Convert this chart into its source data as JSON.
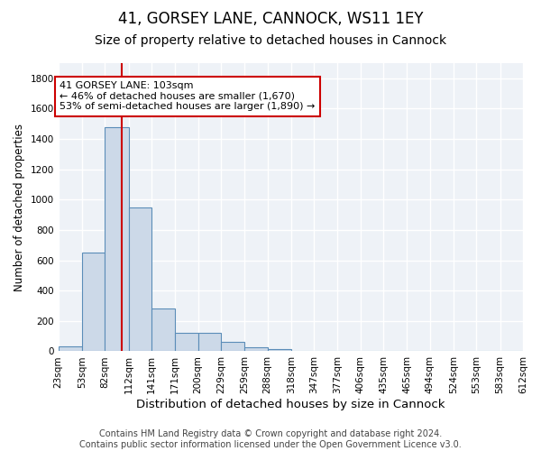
{
  "title1": "41, GORSEY LANE, CANNOCK, WS11 1EY",
  "title2": "Size of property relative to detached houses in Cannock",
  "xlabel": "Distribution of detached houses by size in Cannock",
  "ylabel": "Number of detached properties",
  "bin_edges": [
    23,
    53,
    82,
    112,
    141,
    171,
    200,
    229,
    259,
    288,
    318,
    347,
    377,
    406,
    435,
    465,
    494,
    524,
    553,
    583,
    612
  ],
  "bar_heights": [
    35,
    650,
    1480,
    950,
    280,
    120,
    120,
    60,
    25,
    15,
    5,
    5,
    2,
    0,
    0,
    0,
    0,
    0,
    0,
    0
  ],
  "bar_color": "#ccd9e8",
  "bar_edge_color": "#5b8db8",
  "vline_x": 103,
  "vline_color": "#cc0000",
  "annotation_text_line1": "41 GORSEY LANE: 103sqm",
  "annotation_text_line2": "← 46% of detached houses are smaller (1,670)",
  "annotation_text_line3": "53% of semi-detached houses are larger (1,890) →",
  "annotation_box_color": "#cc0000",
  "ylim": [
    0,
    1900
  ],
  "yticks": [
    0,
    200,
    400,
    600,
    800,
    1000,
    1200,
    1400,
    1600,
    1800
  ],
  "footer1": "Contains HM Land Registry data © Crown copyright and database right 2024.",
  "footer2": "Contains public sector information licensed under the Open Government Licence v3.0.",
  "bg_color": "#ffffff",
  "plot_bg_color": "#eef2f7",
  "grid_color": "#ffffff",
  "title1_fontsize": 12,
  "title2_fontsize": 10,
  "xlabel_fontsize": 9.5,
  "ylabel_fontsize": 8.5,
  "tick_fontsize": 7.5,
  "annotation_fontsize": 8,
  "footer_fontsize": 7
}
